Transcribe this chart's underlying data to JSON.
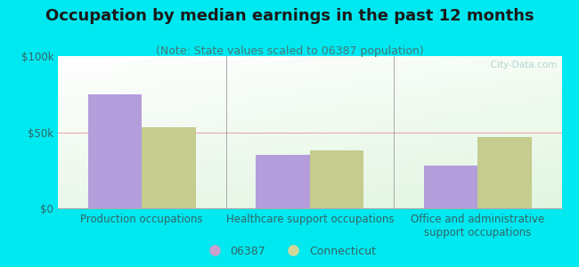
{
  "title": "Occupation by median earnings in the past 12 months",
  "subtitle": "(Note: State values scaled to 06387 population)",
  "categories": [
    "Production occupations",
    "Healthcare support occupations",
    "Office and administrative\nsupport occupations"
  ],
  "series": {
    "06387": [
      75000,
      35000,
      28000
    ],
    "Connecticut": [
      53000,
      38000,
      47000
    ]
  },
  "bar_color_06387": "#b39ddb",
  "bar_color_connecticut": "#c5cc8e",
  "background_color": "#00e8f0",
  "ylim": [
    0,
    100000
  ],
  "yticks": [
    0,
    50000,
    100000
  ],
  "ytick_labels": [
    "$0",
    "$50k",
    "$100k"
  ],
  "legend_color_06387": "#c8a0d0",
  "legend_color_connecticut": "#d0d898",
  "bar_width": 0.32,
  "title_fontsize": 13,
  "subtitle_fontsize": 9,
  "tick_fontsize": 8.5,
  "legend_fontsize": 9,
  "watermark": "  City-Data.com",
  "label_color": "#336666"
}
